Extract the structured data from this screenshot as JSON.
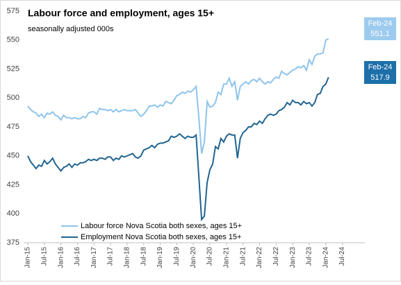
{
  "chart_data": {
    "type": "line",
    "title": "Labour force and employment, ages 15+",
    "subtitle": "seasonally adjusted 000s",
    "categories": [
      "Jan-15",
      null,
      null,
      null,
      null,
      null,
      "Jul-15",
      null,
      null,
      null,
      null,
      null,
      "Jan-16",
      null,
      null,
      null,
      null,
      null,
      "Jul-16",
      null,
      null,
      null,
      null,
      null,
      "Jan-17",
      null,
      null,
      null,
      null,
      null,
      "Jul-17",
      null,
      null,
      null,
      null,
      null,
      "Jan-18",
      null,
      null,
      null,
      null,
      null,
      "Jul-18",
      null,
      null,
      null,
      null,
      null,
      "Jan-19",
      null,
      null,
      null,
      null,
      null,
      "Jul-19",
      null,
      null,
      null,
      null,
      null,
      "Jan-20",
      null,
      null,
      null,
      null,
      null,
      "Jul-20",
      null,
      null,
      null,
      null,
      null,
      "Jan-21",
      null,
      null,
      null,
      null,
      null,
      "Jul-21",
      null,
      null,
      null,
      null,
      null,
      "Jan-22",
      null,
      null,
      null,
      null,
      null,
      "Jul-22",
      null,
      null,
      null,
      null,
      null,
      "Jan-23",
      null,
      null,
      null,
      null,
      null,
      "Jul-23",
      null,
      null,
      null,
      null,
      null,
      "Jan-24",
      null,
      null,
      null,
      null,
      null,
      "Jul-24"
    ],
    "series": [
      {
        "name": "Labour force Nova Scotia both sexes, ages 15+",
        "color": "#8ec4ec",
        "values": [
          493,
          490,
          488,
          487,
          484,
          486,
          483,
          487,
          486,
          488,
          485,
          484,
          481,
          485,
          483,
          483,
          482,
          483,
          482,
          482,
          484,
          483,
          487,
          488,
          488,
          486,
          491,
          490,
          490,
          489,
          490,
          488,
          490,
          488,
          489,
          490,
          489,
          489,
          489,
          490,
          487,
          484,
          486,
          489,
          493,
          493,
          494,
          492,
          494,
          493,
          497,
          496,
          495,
          498,
          502,
          503,
          505,
          504,
          506,
          505,
          507,
          510,
          483,
          452,
          462,
          497,
          492,
          493,
          496,
          505,
          503,
          512,
          512,
          517,
          510,
          514,
          498,
          510,
          512,
          514,
          512,
          515,
          516,
          514,
          517,
          514,
          512,
          514,
          513,
          516,
          518,
          517,
          523,
          521,
          520,
          522,
          524,
          525,
          527,
          526,
          528,
          524,
          533,
          529,
          536,
          538,
          538,
          539,
          550,
          551.1,
          null,
          null,
          null,
          null,
          null
        ]
      },
      {
        "name": "Employment Nova Scotia both sexes, ages 15+",
        "color": "#1f6391",
        "values": [
          450,
          445,
          442,
          439,
          442,
          441,
          446,
          443,
          445,
          448,
          443,
          440,
          437,
          440,
          441,
          443,
          440,
          443,
          442,
          444,
          444,
          445,
          447,
          446,
          447,
          446,
          448,
          448,
          447,
          449,
          449,
          446,
          448,
          447,
          450,
          449,
          450,
          451,
          452,
          449,
          448,
          450,
          455,
          456,
          457,
          459,
          457,
          460,
          461,
          461,
          462,
          463,
          467,
          466,
          467,
          469,
          467,
          465,
          467,
          466,
          466,
          468,
          432,
          395,
          398,
          427,
          438,
          443,
          458,
          456,
          465,
          462,
          467,
          469,
          468,
          468,
          448,
          465,
          470,
          472,
          475,
          475,
          478,
          477,
          480,
          478,
          482,
          485,
          486,
          485,
          486,
          489,
          490,
          492,
          496,
          494,
          498,
          496,
          496,
          494,
          497,
          495,
          496,
          493,
          496,
          503,
          504,
          510,
          512,
          517.9,
          null,
          null,
          null,
          null,
          null
        ]
      }
    ],
    "annotations": [
      {
        "date": "Feb-24",
        "value": 551.1,
        "color": "#9dcbef"
      },
      {
        "date": "Feb-24",
        "value": 517.9,
        "color": "#1d6fa9"
      }
    ],
    "ylim": [
      375,
      575
    ],
    "yticks": [
      375,
      400,
      425,
      450,
      475,
      500,
      525,
      550,
      575
    ],
    "grid": false,
    "legend": "bottom"
  }
}
